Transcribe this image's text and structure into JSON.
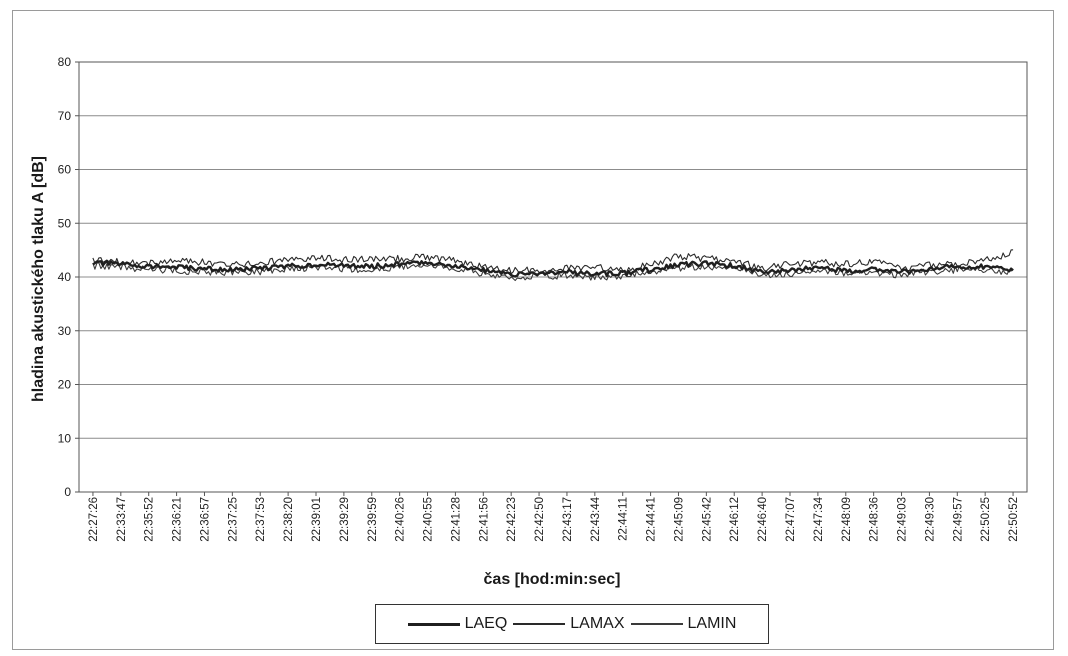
{
  "chart_data": {
    "type": "line",
    "title": "",
    "xlabel": "čas [hod:min:sec]",
    "ylabel": "hladina akustického tlaku A [dB]",
    "ylim": [
      0,
      80
    ],
    "yticks": [
      0,
      10,
      20,
      30,
      40,
      50,
      60,
      70,
      80
    ],
    "grid": "horizontal",
    "legend_position": "bottom",
    "x": [
      "22:27:26",
      "22:33:47",
      "22:35:52",
      "22:36:21",
      "22:36:57",
      "22:37:25",
      "22:37:53",
      "22:38:20",
      "22:39:01",
      "22:39:29",
      "22:39:59",
      "22:40:26",
      "22:40:55",
      "22:41:28",
      "22:41:56",
      "22:42:23",
      "22:42:50",
      "22:43:17",
      "22:43:44",
      "22:44:11",
      "22:44:41",
      "22:45:09",
      "22:45:42",
      "22:46:12",
      "22:46:40",
      "22:47:07",
      "22:47:34",
      "22:48:09",
      "22:48:36",
      "22:49:03",
      "22:49:30",
      "22:49:57",
      "22:50:25",
      "22:50:52"
    ],
    "series": [
      {
        "name": "LAEQ",
        "values": [
          42.6,
          42.4,
          42.0,
          41.8,
          41.5,
          41.3,
          41.6,
          42.0,
          42.3,
          42.1,
          42.0,
          42.4,
          42.7,
          42.1,
          41.3,
          40.4,
          40.7,
          40.9,
          40.6,
          40.7,
          41.4,
          42.3,
          42.5,
          42.1,
          41.0,
          41.3,
          41.7,
          41.1,
          41.5,
          40.9,
          41.5,
          41.9,
          42.0,
          41.4
        ],
        "color": "#1f1f1f",
        "line_weight": "heavy"
      },
      {
        "name": "LAMAX",
        "values": [
          43.1,
          43.0,
          42.6,
          42.9,
          42.8,
          42.2,
          42.5,
          43.3,
          43.6,
          43.2,
          43.5,
          43.4,
          43.8,
          43.0,
          41.9,
          41.1,
          41.3,
          41.6,
          41.9,
          41.3,
          42.2,
          43.9,
          43.4,
          43.1,
          41.6,
          42.4,
          42.7,
          42.4,
          42.8,
          41.5,
          42.2,
          42.5,
          43.1,
          44.6
        ],
        "color": "#2a2a2a",
        "line_weight": "thin"
      },
      {
        "name": "LAMIN",
        "values": [
          42.1,
          41.9,
          41.4,
          41.2,
          40.9,
          40.8,
          41.0,
          41.5,
          41.8,
          41.6,
          41.3,
          41.9,
          42.2,
          41.6,
          40.7,
          39.9,
          40.1,
          40.3,
          40.0,
          40.2,
          40.9,
          41.7,
          42.0,
          41.6,
          40.4,
          40.7,
          41.1,
          40.5,
          40.9,
          40.4,
          41.0,
          41.4,
          41.5,
          40.8
        ],
        "color": "#3a3a3a",
        "line_weight": "thin"
      }
    ]
  }
}
